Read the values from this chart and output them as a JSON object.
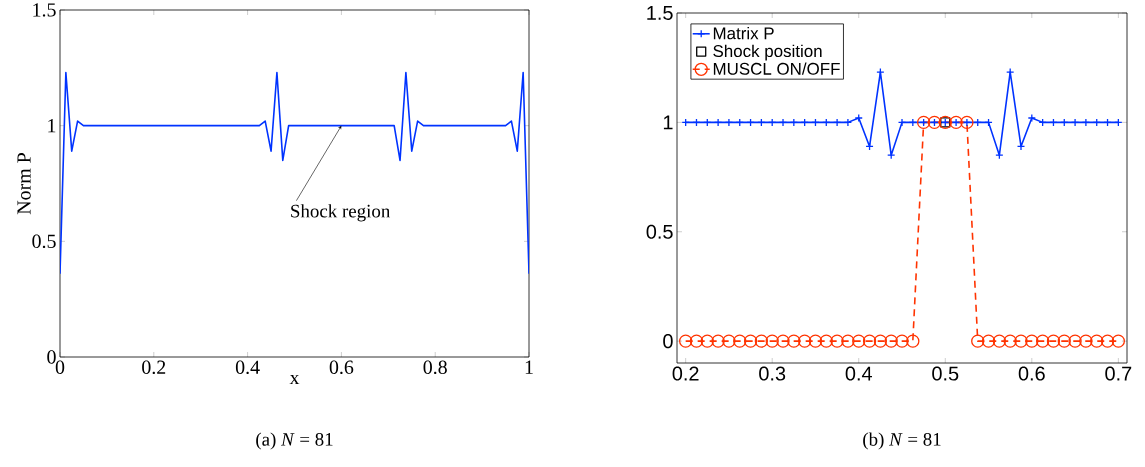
{
  "chart_data": [
    {
      "type": "line",
      "subtitle": "(a) *N* = 81",
      "xlabel": "x",
      "ylabel": "Norm P",
      "color": "#0033ff",
      "x": [
        0,
        0.0125,
        0.025,
        0.0375,
        0.05,
        0.425,
        0.4375,
        0.45,
        0.4625,
        0.475,
        0.4875,
        0.7125,
        0.725,
        0.7375,
        0.75,
        0.7625,
        0.775,
        0.95,
        0.9625,
        0.975,
        0.9875,
        1
      ],
      "values": [
        0.36,
        1.23,
        0.89,
        1.02,
        1,
        1,
        1.02,
        0.89,
        1.23,
        0.85,
        1,
        1,
        0.85,
        1.23,
        0.89,
        1.02,
        1,
        1,
        1.02,
        0.89,
        1.23,
        0.36
      ],
      "xlim": [
        0,
        1
      ],
      "ylim": [
        0,
        1.5
      ],
      "xticks": [
        0,
        0.2,
        0.4,
        0.6,
        0.8,
        1
      ],
      "yticks": [
        0,
        0.5,
        1,
        1.5
      ],
      "annotations": [
        {
          "text": "Shock region",
          "x": 0.6,
          "y": 1
        }
      ]
    },
    {
      "type": "line",
      "subtitle": "(b) *N* = 81",
      "legend": "top left",
      "x": [
        0.2,
        0.2125,
        0.225,
        0.2375,
        0.25,
        0.2625,
        0.275,
        0.2875,
        0.3,
        0.3125,
        0.325,
        0.3375,
        0.35,
        0.3625,
        0.375,
        0.3875,
        0.4,
        0.4125,
        0.425,
        0.4375,
        0.45,
        0.4625,
        0.475,
        0.4875,
        0.5,
        0.5125,
        0.525,
        0.5375,
        0.55,
        0.5625,
        0.575,
        0.5875,
        0.6,
        0.6125,
        0.625,
        0.6375,
        0.65,
        0.6625,
        0.675,
        0.6875,
        0.7
      ],
      "series": [
        {
          "name": "Matrix P",
          "color": "#0033ff",
          "marker": "cross",
          "line_style": "solid",
          "values": [
            1,
            1,
            1,
            1,
            1,
            1,
            1,
            1,
            1,
            1,
            1,
            1,
            1,
            1,
            1,
            1,
            1.02,
            0.89,
            1.23,
            0.85,
            1,
            1,
            1,
            1,
            1,
            1,
            1,
            1,
            1,
            0.85,
            1.23,
            0.89,
            1.02,
            1,
            1,
            1,
            1,
            1,
            1,
            1,
            1
          ]
        },
        {
          "name": "Shock position",
          "type": "scatter",
          "color": "#000000",
          "marker": "square",
          "x": [
            0.5
          ],
          "values": [
            1
          ]
        },
        {
          "name": "MUSCL ON/OFF",
          "color": "#ff3300",
          "marker": "circle",
          "line_style": "dashed",
          "values": [
            0,
            0,
            0,
            0,
            0,
            0,
            0,
            0,
            0,
            0,
            0,
            0,
            0,
            0,
            0,
            0,
            0,
            0,
            0,
            0,
            0,
            0,
            1,
            1,
            1,
            1,
            1,
            0,
            0,
            0,
            0,
            0,
            0,
            0,
            0,
            0,
            0,
            0,
            0,
            0,
            0
          ]
        }
      ],
      "xlim": [
        0.19,
        0.71
      ],
      "ylim": [
        -0.1,
        1.5
      ],
      "xticks": [
        0.2,
        0.3,
        0.4,
        0.5,
        0.6,
        0.7
      ],
      "yticks": [
        0,
        0.5,
        1,
        1.5
      ]
    }
  ]
}
